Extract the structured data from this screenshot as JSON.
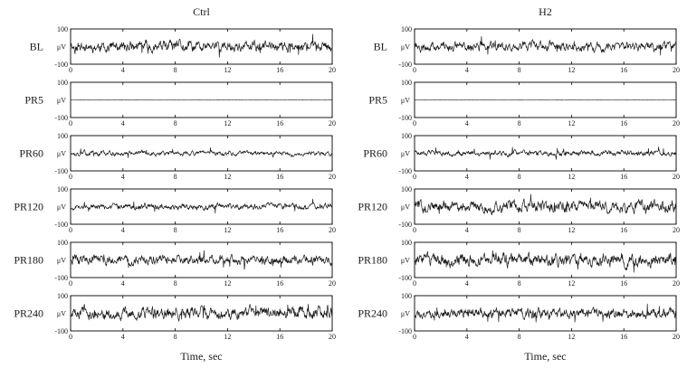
{
  "chart_data": {
    "type": "line",
    "columns": [
      "Ctrl",
      "H2"
    ],
    "rows": [
      "BL",
      "PR5",
      "PR60",
      "PR120",
      "PR180",
      "PR240"
    ],
    "xlabel": "Time, sec",
    "ylabel": "μV",
    "xlim": [
      0,
      20
    ],
    "ylim": [
      -100,
      100
    ],
    "x_ticks": [
      "0",
      "4",
      "8",
      "12",
      "16",
      "20"
    ],
    "y_ticks": [
      "100",
      "-100"
    ],
    "y_tick_values": [
      100,
      -100
    ],
    "grid": false,
    "legend": "none",
    "amplitude_uv": {
      "Ctrl": {
        "BL": 28,
        "PR5": 1,
        "PR60": 12,
        "PR120": 16,
        "PR180": 24,
        "PR240": 30
      },
      "H2": {
        "BL": 24,
        "PR5": 1,
        "PR60": 14,
        "PR120": 30,
        "PR180": 32,
        "PR240": 26
      }
    },
    "seeds": {
      "Ctrl": {
        "BL": 11,
        "PR5": 12,
        "PR60": 13,
        "PR120": 14,
        "PR180": 15,
        "PR240": 16
      },
      "H2": {
        "BL": 21,
        "PR5": 22,
        "PR60": 23,
        "PR120": 24,
        "PR180": 25,
        "PR240": 26
      }
    },
    "trace_color": "#1a1a1a",
    "axis_color": "#000000"
  }
}
